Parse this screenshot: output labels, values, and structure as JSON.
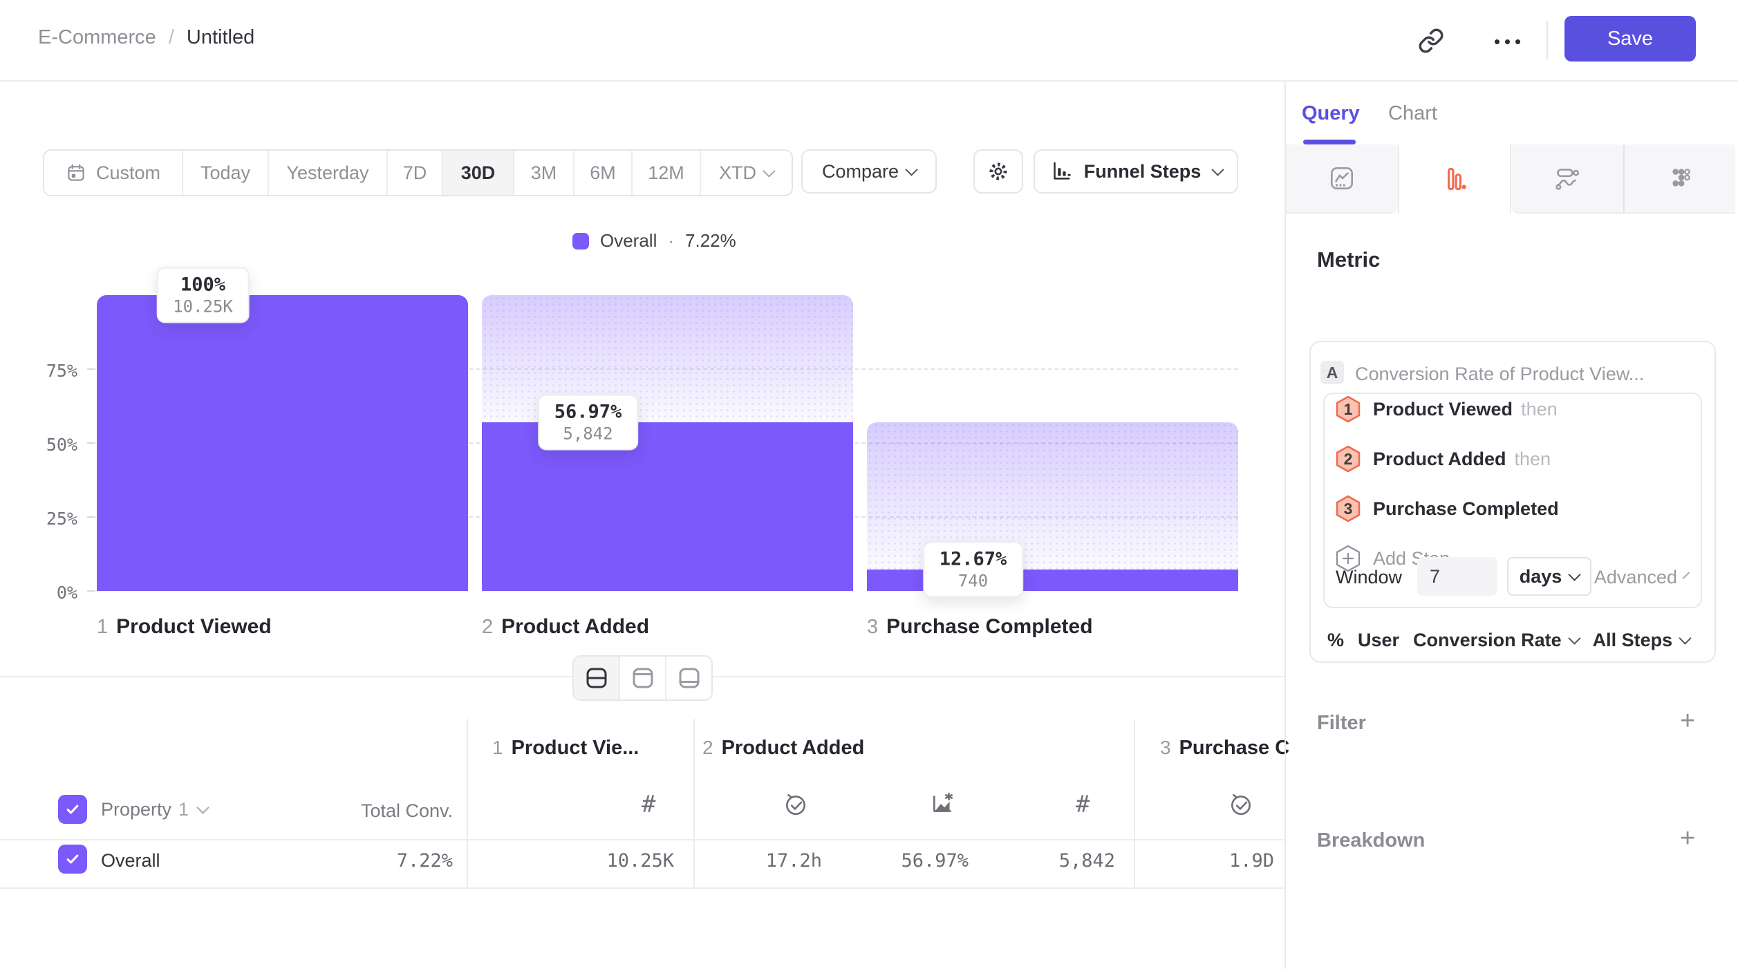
{
  "colors": {
    "accent": "#5a50e0",
    "bar": "#7b59fa",
    "orange": "#f26b50",
    "step_badge_fill": "#f9c2b1",
    "step_badge_border": "#ef6a4d",
    "text_dark": "#2f2f37",
    "text_gray": "#8f8f97",
    "border": "#e8e8ea"
  },
  "header": {
    "breadcrumb_parent": "E-Commerce",
    "breadcrumb_separator": "/",
    "breadcrumb_current": "Untitled",
    "save_label": "Save"
  },
  "toolbar": {
    "date_ranges": [
      "Custom",
      "Today",
      "Yesterday",
      "7D",
      "30D",
      "3M",
      "6M",
      "12M",
      "XTD"
    ],
    "active_range": "30D",
    "compare_label": "Compare",
    "view_label": "Funnel Steps"
  },
  "legend": {
    "swatch_color": "#7b59fa",
    "label": "Overall",
    "separator": "·",
    "value": "7.22%"
  },
  "chart_data": {
    "type": "bar",
    "subtype": "funnel",
    "title": "Funnel Steps",
    "categories": [
      "Product Viewed",
      "Product Added",
      "Purchase Completed"
    ],
    "step_numbers": [
      "1",
      "2",
      "3"
    ],
    "series": [
      {
        "name": "Overall",
        "overall_conversion": "7.22%",
        "counts": [
          10250,
          5842,
          740
        ],
        "pct_labels": [
          "100%",
          "56.97%",
          "12.67%"
        ],
        "count_labels": [
          "10.25K",
          "5,842",
          "740"
        ]
      }
    ],
    "y_ticks": [
      "75%",
      "50%",
      "25%",
      "0%"
    ],
    "ylim": [
      0,
      100
    ],
    "grid": "dashed horizontal at 25/50/75",
    "legend_position": "top-center"
  },
  "table": {
    "property_label": "Property",
    "property_number": "1",
    "total_conv_label": "Total Conv.",
    "column_groups": [
      {
        "num": "1",
        "label": "Product Vie...",
        "icons": [
          "hash"
        ]
      },
      {
        "num": "2",
        "label": "Product Added",
        "icons": [
          "clock-check",
          "chart-percent",
          "hash"
        ]
      },
      {
        "num": "3",
        "label": "Purchase C",
        "icons": [
          "clock-check"
        ]
      }
    ],
    "row": {
      "label": "Overall",
      "total_conv": "7.22%",
      "values": [
        "10.25K",
        "17.2h",
        "56.97%",
        "5,842",
        "1.9D"
      ]
    }
  },
  "panel": {
    "tabs": [
      {
        "label": "Query"
      },
      {
        "label": "Chart"
      }
    ],
    "active_tab": "Query",
    "chart_type_icons": [
      "line-chart",
      "funnel-bars",
      "flow",
      "grid-dots"
    ],
    "active_chart_type": "funnel-bars",
    "metric_heading": "Metric",
    "metric_badge": "A",
    "metric_title": "Conversion Rate of Product View...",
    "steps": [
      {
        "num": "1",
        "label": "Product Viewed",
        "suffix": "then"
      },
      {
        "num": "2",
        "label": "Product Added",
        "suffix": "then"
      },
      {
        "num": "3",
        "label": "Purchase Completed",
        "suffix": ""
      }
    ],
    "add_step_label": "Add Step",
    "window_label": "Window",
    "window_value": "7",
    "window_unit": "days",
    "advanced_label": "Advanced",
    "measure_prefix": "%",
    "measure_entity": "User",
    "measure_metric": "Conversion Rate",
    "measure_scope": "All Steps",
    "filter_label": "Filter",
    "breakdown_label": "Breakdown",
    "add_symbol": "+"
  }
}
